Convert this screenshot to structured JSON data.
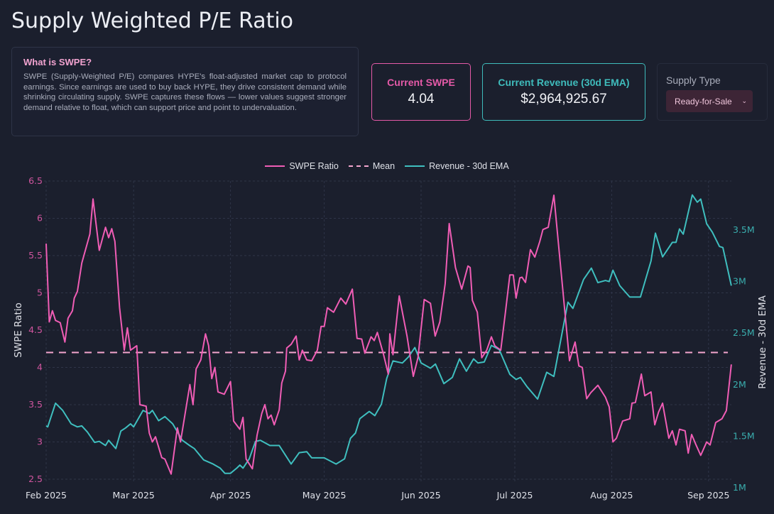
{
  "header": {
    "title": "Supply Weighted P/E Ratio"
  },
  "info": {
    "heading": "What is SWPE?",
    "body": "SWPE (Supply-Weighted P/E) compares HYPE's float-adjusted market cap to protocol earnings. Since earnings are used to buy back HYPE, they drive consistent demand while shrinking circulating supply. SWPE captures these flows — lower values suggest stronger demand relative to float, which can support price and point to undervaluation."
  },
  "cards": {
    "swpe": {
      "label": "Current SWPE",
      "value": "4.04"
    },
    "revenue": {
      "label": "Current Revenue (30d EMA)",
      "value": "$2,964,925.67"
    }
  },
  "supply": {
    "label": "Supply Type",
    "selected": "Ready-for-Sale"
  },
  "colors": {
    "swpe": "#f05db5",
    "mean": "#f4a6cf",
    "revenue": "#3fbfbf",
    "background": "#1b1f2d"
  },
  "chart_data": {
    "type": "line",
    "x_unit": "days since 2025-02-01",
    "xlim": [
      0,
      219.5
    ],
    "x_ticks": [
      {
        "x": 0,
        "label": "Feb 2025"
      },
      {
        "x": 28,
        "label": "Mar 2025"
      },
      {
        "x": 59,
        "label": "Apr 2025"
      },
      {
        "x": 89,
        "label": "May 2025"
      },
      {
        "x": 120,
        "label": "Jun 2025"
      },
      {
        "x": 150,
        "label": "Jul 2025"
      },
      {
        "x": 181,
        "label": "Aug 2025"
      },
      {
        "x": 212,
        "label": "Sep 2025"
      }
    ],
    "y_left": {
      "label": "SWPE Ratio",
      "range": [
        2.5,
        6.5
      ],
      "ticks": [
        "2.5",
        "3",
        "3.5",
        "4",
        "4.5",
        "5",
        "5.5",
        "6",
        "6.5"
      ]
    },
    "y_right": {
      "label": "Revenue - 30d EMA",
      "range": [
        1.08,
        3.975
      ],
      "unit": "M USD",
      "ticks": [
        {
          "v": 1,
          "label": "1M"
        },
        {
          "v": 1.5,
          "label": "1.5M"
        },
        {
          "v": 2,
          "label": "2M"
        },
        {
          "v": 2.5,
          "label": "2.5M"
        },
        {
          "v": 3,
          "label": "3M"
        },
        {
          "v": 3.5,
          "label": "3.5M"
        }
      ]
    },
    "legend": {
      "position": "top-center",
      "entries": [
        "SWPE Ratio",
        "Mean",
        "Revenue - 30d EMA"
      ]
    },
    "mean": 4.2,
    "series": [
      {
        "name": "SWPE Ratio",
        "axis": "left",
        "points": [
          [
            0,
            5.66
          ],
          [
            1,
            4.61
          ],
          [
            2,
            4.76
          ],
          [
            3,
            4.63
          ],
          [
            4.5,
            4.6
          ],
          [
            6,
            4.34
          ],
          [
            7,
            4.66
          ],
          [
            8.4,
            4.76
          ],
          [
            9,
            4.93
          ],
          [
            10,
            5.02
          ],
          [
            11.4,
            5.4
          ],
          [
            14,
            5.79
          ],
          [
            15,
            6.26
          ],
          [
            17,
            5.57
          ],
          [
            19,
            5.88
          ],
          [
            20,
            5.74
          ],
          [
            21,
            5.86
          ],
          [
            22,
            5.69
          ],
          [
            23.5,
            4.8
          ],
          [
            25,
            4.23
          ],
          [
            26,
            4.53
          ],
          [
            27,
            4.23
          ],
          [
            29,
            4.29
          ],
          [
            30,
            3.5
          ],
          [
            32,
            3.48
          ],
          [
            33,
            3.12
          ],
          [
            34,
            3.0
          ],
          [
            35,
            3.07
          ],
          [
            37,
            2.79
          ],
          [
            38,
            2.77
          ],
          [
            40,
            2.57
          ],
          [
            42,
            3.19
          ],
          [
            43,
            3.0
          ],
          [
            46,
            3.77
          ],
          [
            47,
            3.5
          ],
          [
            48,
            3.98
          ],
          [
            49.5,
            4.1
          ],
          [
            51,
            4.45
          ],
          [
            52,
            4.29
          ],
          [
            53,
            3.85
          ],
          [
            54,
            4.0
          ],
          [
            55,
            3.67
          ],
          [
            57,
            3.64
          ],
          [
            59,
            3.81
          ],
          [
            60,
            3.28
          ],
          [
            62,
            3.17
          ],
          [
            63,
            3.33
          ],
          [
            64,
            2.77
          ],
          [
            66,
            2.64
          ],
          [
            67.5,
            3.09
          ],
          [
            69,
            3.38
          ],
          [
            70,
            3.5
          ],
          [
            71,
            3.31
          ],
          [
            72,
            3.36
          ],
          [
            73,
            3.23
          ],
          [
            74.6,
            3.43
          ],
          [
            75.4,
            3.79
          ],
          [
            76.6,
            3.95
          ],
          [
            77,
            4.26
          ],
          [
            78.4,
            4.31
          ],
          [
            80,
            4.42
          ],
          [
            81,
            4.1
          ],
          [
            82,
            4.23
          ],
          [
            83.4,
            4.1
          ],
          [
            85,
            4.09
          ],
          [
            86.8,
            4.23
          ],
          [
            88,
            4.55
          ],
          [
            89,
            4.55
          ],
          [
            90,
            4.8
          ],
          [
            92,
            4.74
          ],
          [
            94.3,
            4.93
          ],
          [
            95.9,
            4.85
          ],
          [
            98,
            5.05
          ],
          [
            99.5,
            4.39
          ],
          [
            101,
            4.38
          ],
          [
            102,
            4.19
          ],
          [
            104,
            4.41
          ],
          [
            105,
            4.36
          ],
          [
            106,
            4.47
          ],
          [
            108,
            4.17
          ],
          [
            109.5,
            3.91
          ],
          [
            110,
            4.45
          ],
          [
            111,
            4.17
          ],
          [
            113,
            4.96
          ],
          [
            115.5,
            4.42
          ],
          [
            117.5,
            3.88
          ],
          [
            119,
            4.13
          ],
          [
            121,
            4.91
          ],
          [
            123,
            4.86
          ],
          [
            124.5,
            4.42
          ],
          [
            126,
            4.61
          ],
          [
            127.7,
            5.12
          ],
          [
            129,
            5.93
          ],
          [
            131,
            5.34
          ],
          [
            133,
            5.05
          ],
          [
            135,
            5.36
          ],
          [
            135.7,
            5.34
          ],
          [
            136.4,
            4.9
          ],
          [
            138,
            4.74
          ],
          [
            139.4,
            4.13
          ],
          [
            141,
            4.23
          ],
          [
            142.5,
            4.41
          ],
          [
            143.6,
            4.29
          ],
          [
            145.5,
            4.23
          ],
          [
            147,
            4.74
          ],
          [
            148.4,
            5.24
          ],
          [
            149.5,
            5.24
          ],
          [
            150.4,
            4.93
          ],
          [
            151.6,
            5.2
          ],
          [
            152.3,
            5.21
          ],
          [
            153.4,
            5.14
          ],
          [
            155,
            5.58
          ],
          [
            156.4,
            5.48
          ],
          [
            158,
            5.69
          ],
          [
            159,
            5.85
          ],
          [
            160.7,
            5.88
          ],
          [
            162.5,
            6.31
          ],
          [
            167.5,
            4.09
          ],
          [
            169.3,
            4.34
          ],
          [
            170.5,
            4.02
          ],
          [
            171.6,
            4.0
          ],
          [
            173,
            3.58
          ],
          [
            174.3,
            3.66
          ],
          [
            176.6,
            3.76
          ],
          [
            179,
            3.6
          ],
          [
            180.2,
            3.47
          ],
          [
            181.4,
            3.0
          ],
          [
            182.5,
            3.05
          ],
          [
            184.5,
            3.28
          ],
          [
            186.8,
            3.31
          ],
          [
            187.5,
            3.52
          ],
          [
            188.6,
            3.53
          ],
          [
            190.5,
            3.91
          ],
          [
            191.6,
            3.62
          ],
          [
            193.6,
            3.67
          ],
          [
            194.8,
            3.23
          ],
          [
            196,
            3.4
          ],
          [
            197.3,
            3.52
          ],
          [
            199.3,
            3.05
          ],
          [
            200.4,
            3.15
          ],
          [
            201.6,
            2.96
          ],
          [
            202.7,
            3.17
          ],
          [
            204.5,
            3.15
          ],
          [
            205.5,
            2.85
          ],
          [
            206.6,
            3.1
          ],
          [
            208,
            2.96
          ],
          [
            209.5,
            2.82
          ],
          [
            211.4,
            3.0
          ],
          [
            212.5,
            2.96
          ],
          [
            214.3,
            3.26
          ],
          [
            216.3,
            3.31
          ],
          [
            217.7,
            3.42
          ],
          [
            219.3,
            4.04
          ]
        ]
      },
      {
        "name": "Revenue - 30d EMA",
        "axis": "right",
        "unit": "M USD",
        "points": [
          [
            0,
            1.6
          ],
          [
            0.5,
            1.59
          ],
          [
            3,
            1.82
          ],
          [
            5.3,
            1.75
          ],
          [
            8,
            1.62
          ],
          [
            10,
            1.59
          ],
          [
            11.4,
            1.6
          ],
          [
            13.2,
            1.54
          ],
          [
            15.5,
            1.44
          ],
          [
            17,
            1.45
          ],
          [
            19,
            1.41
          ],
          [
            20,
            1.46
          ],
          [
            22.3,
            1.38
          ],
          [
            23.9,
            1.55
          ],
          [
            25.4,
            1.58
          ],
          [
            27,
            1.62
          ],
          [
            28,
            1.59
          ],
          [
            31,
            1.75
          ],
          [
            33,
            1.72
          ],
          [
            34,
            1.75
          ],
          [
            36,
            1.65
          ],
          [
            38,
            1.69
          ],
          [
            40.5,
            1.62
          ],
          [
            43.6,
            1.46
          ],
          [
            45.9,
            1.41
          ],
          [
            47.4,
            1.38
          ],
          [
            50.4,
            1.27
          ],
          [
            53.4,
            1.23
          ],
          [
            55.7,
            1.19
          ],
          [
            57.2,
            1.14
          ],
          [
            59,
            1.14
          ],
          [
            61,
            1.19
          ],
          [
            62,
            1.22
          ],
          [
            63,
            1.19
          ],
          [
            65,
            1.28
          ],
          [
            67,
            1.45
          ],
          [
            68.6,
            1.46
          ],
          [
            71.6,
            1.41
          ],
          [
            74.6,
            1.41
          ],
          [
            78.4,
            1.23
          ],
          [
            81,
            1.34
          ],
          [
            83.4,
            1.35
          ],
          [
            85,
            1.29
          ],
          [
            89,
            1.29
          ],
          [
            92.8,
            1.23
          ],
          [
            95.5,
            1.28
          ],
          [
            97.4,
            1.48
          ],
          [
            99,
            1.53
          ],
          [
            100.4,
            1.67
          ],
          [
            103.4,
            1.74
          ],
          [
            105.2,
            1.7
          ],
          [
            107.3,
            1.81
          ],
          [
            109,
            2.06
          ],
          [
            111,
            2.23
          ],
          [
            114,
            2.21
          ],
          [
            116,
            2.27
          ],
          [
            118,
            2.36
          ],
          [
            120,
            2.21
          ],
          [
            123,
            2.16
          ],
          [
            124.6,
            2.2
          ],
          [
            127.3,
            2.01
          ],
          [
            130,
            2.07
          ],
          [
            132.3,
            2.25
          ],
          [
            134.5,
            2.13
          ],
          [
            136.8,
            2.25
          ],
          [
            138.2,
            2.21
          ],
          [
            140.2,
            2.22
          ],
          [
            142.5,
            2.38
          ],
          [
            145,
            2.34
          ],
          [
            148.4,
            2.1
          ],
          [
            150.4,
            2.05
          ],
          [
            151.8,
            2.07
          ],
          [
            153.9,
            1.98
          ],
          [
            157.3,
            1.86
          ],
          [
            160.2,
            2.12
          ],
          [
            162.5,
            2.08
          ],
          [
            167,
            2.8
          ],
          [
            168.6,
            2.74
          ],
          [
            172,
            3.02
          ],
          [
            174.5,
            3.13
          ],
          [
            176.6,
            2.99
          ],
          [
            179,
            3.01
          ],
          [
            180.2,
            3.0
          ],
          [
            181.4,
            3.11
          ],
          [
            183.6,
            2.96
          ],
          [
            186.8,
            2.85
          ],
          [
            190.2,
            2.85
          ],
          [
            193.6,
            3.2
          ],
          [
            195,
            3.47
          ],
          [
            197.3,
            3.24
          ],
          [
            200.4,
            3.38
          ],
          [
            201.6,
            3.38
          ],
          [
            202.7,
            3.51
          ],
          [
            203.9,
            3.46
          ],
          [
            206.8,
            3.84
          ],
          [
            208.4,
            3.77
          ],
          [
            209.5,
            3.8
          ],
          [
            211.4,
            3.56
          ],
          [
            213.2,
            3.48
          ],
          [
            215.5,
            3.34
          ],
          [
            216.6,
            3.33
          ],
          [
            219.3,
            2.96
          ]
        ]
      }
    ]
  }
}
